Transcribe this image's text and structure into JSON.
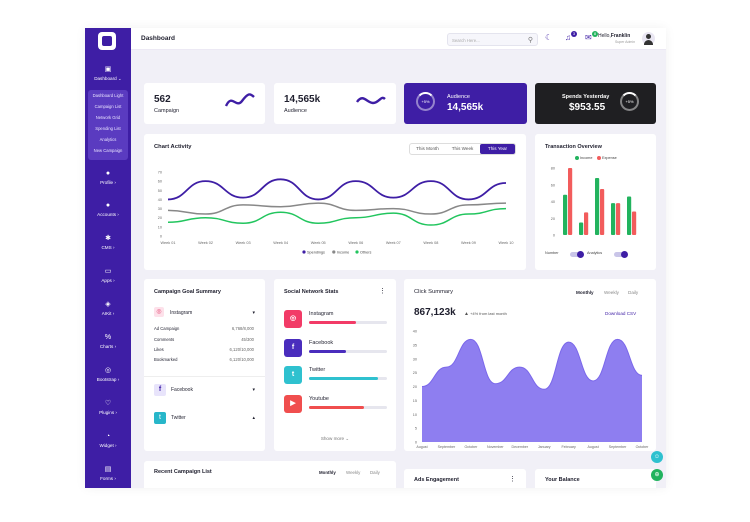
{
  "sidebar": {
    "dashboard": "Dashboard ⌄",
    "sub": [
      "Dashboard Light",
      "Campaign List",
      "Network Grid",
      "Spending List",
      "Analytics",
      "New Campaign"
    ],
    "items": [
      "Profile ›",
      "Accounts ›",
      "CMS ›",
      "Apps ›",
      "AIKit ›",
      "Charts ›",
      "Bootstrap ›",
      "Plugins ›",
      "Widget ›",
      "Forms ›"
    ]
  },
  "header": {
    "title": "Dashboard",
    "search_placeholder": "Search Here...",
    "hello": "Hello,",
    "user": "Franklin",
    "role": "Super Admin",
    "notif_count": "3",
    "mail_count": "8"
  },
  "stats": [
    {
      "value": "562",
      "label": "Campaign"
    },
    {
      "value": "14,565k",
      "label": "Audience"
    },
    {
      "value": "14,565k",
      "label": "Audience",
      "badge": "+5%"
    },
    {
      "value": "$953.55",
      "label": "Spends Yesterday",
      "badge": "+5%"
    }
  ],
  "activity": {
    "title": "Chart Activity",
    "tabs": [
      "This Month",
      "This Week",
      "This Year"
    ],
    "chart_data": {
      "type": "line",
      "x": [
        "Week 01",
        "Week 02",
        "Week 03",
        "Week 04",
        "Week 05",
        "Week 06",
        "Week 07",
        "Week 08",
        "Week 09",
        "Week 10"
      ],
      "ylim": [
        0,
        70
      ],
      "yticks": [
        "70",
        "60",
        "50",
        "40",
        "30",
        "20",
        "10",
        "0"
      ],
      "series": [
        {
          "name": "Spendings",
          "values": [
            40,
            60,
            42,
            62,
            40,
            60,
            42,
            60,
            40,
            58
          ]
        },
        {
          "name": "Income",
          "values": [
            28,
            24,
            34,
            32,
            36,
            28,
            30,
            24,
            34,
            36
          ]
        },
        {
          "name": "Others",
          "values": [
            15,
            20,
            14,
            26,
            14,
            20,
            25,
            12,
            24,
            30
          ]
        }
      ]
    }
  },
  "transaction": {
    "title": "Transaction Overview",
    "legend": [
      "Income",
      "Expense"
    ],
    "chart_data": {
      "type": "bar",
      "yticks": [
        "80",
        "60",
        "40",
        "20",
        "0"
      ],
      "ylim": [
        0,
        80
      ],
      "series": [
        {
          "name": "Income",
          "values": [
            48,
            15,
            68,
            38,
            46
          ]
        },
        {
          "name": "Expense",
          "values": [
            80,
            27,
            55,
            38,
            28
          ]
        }
      ]
    },
    "toggles": [
      "Number",
      "Analytics"
    ]
  },
  "goal": {
    "title": "Campaign Goal Summary",
    "instagram": "Instagram",
    "rows": [
      [
        "Ad Campaign",
        "6,768/8,000"
      ],
      [
        "Comments",
        "45/300"
      ],
      [
        "Likes",
        "6,120/10,000"
      ],
      [
        "Bookmarked",
        "6,120/10,000"
      ]
    ],
    "facebook": "Facebook",
    "twitter": "Twitter"
  },
  "social": {
    "title": "Social Network Stats",
    "items": [
      {
        "name": "Instagram",
        "pct": 60
      },
      {
        "name": "Facebook",
        "pct": 48
      },
      {
        "name": "Twitter",
        "pct": 88
      },
      {
        "name": "Youtube",
        "pct": 70
      }
    ],
    "more": "Show more ⌄"
  },
  "click": {
    "title": "Click Summary",
    "tabs": [
      "Monthly",
      "Weekly",
      "Daily"
    ],
    "value": "867,123k",
    "change": "+4% from last month",
    "download": "Download CSV",
    "chart_data": {
      "type": "area",
      "x": [
        "August",
        "September",
        "October",
        "November",
        "December",
        "January",
        "February",
        "August",
        "September",
        "October"
      ],
      "yticks": [
        "40",
        "35",
        "30",
        "25",
        "20",
        "15",
        "10",
        "5",
        "0"
      ],
      "ylim": [
        0,
        40
      ],
      "values": [
        20,
        27,
        37,
        21,
        27,
        19,
        36,
        22,
        37,
        24
      ]
    }
  },
  "recent": {
    "title": "Recent Campaign List",
    "tabs": [
      "Monthly",
      "Weekly",
      "Daily"
    ]
  },
  "ads": {
    "title": "Ads Engagement"
  },
  "balance": {
    "title": "Your Balance"
  }
}
